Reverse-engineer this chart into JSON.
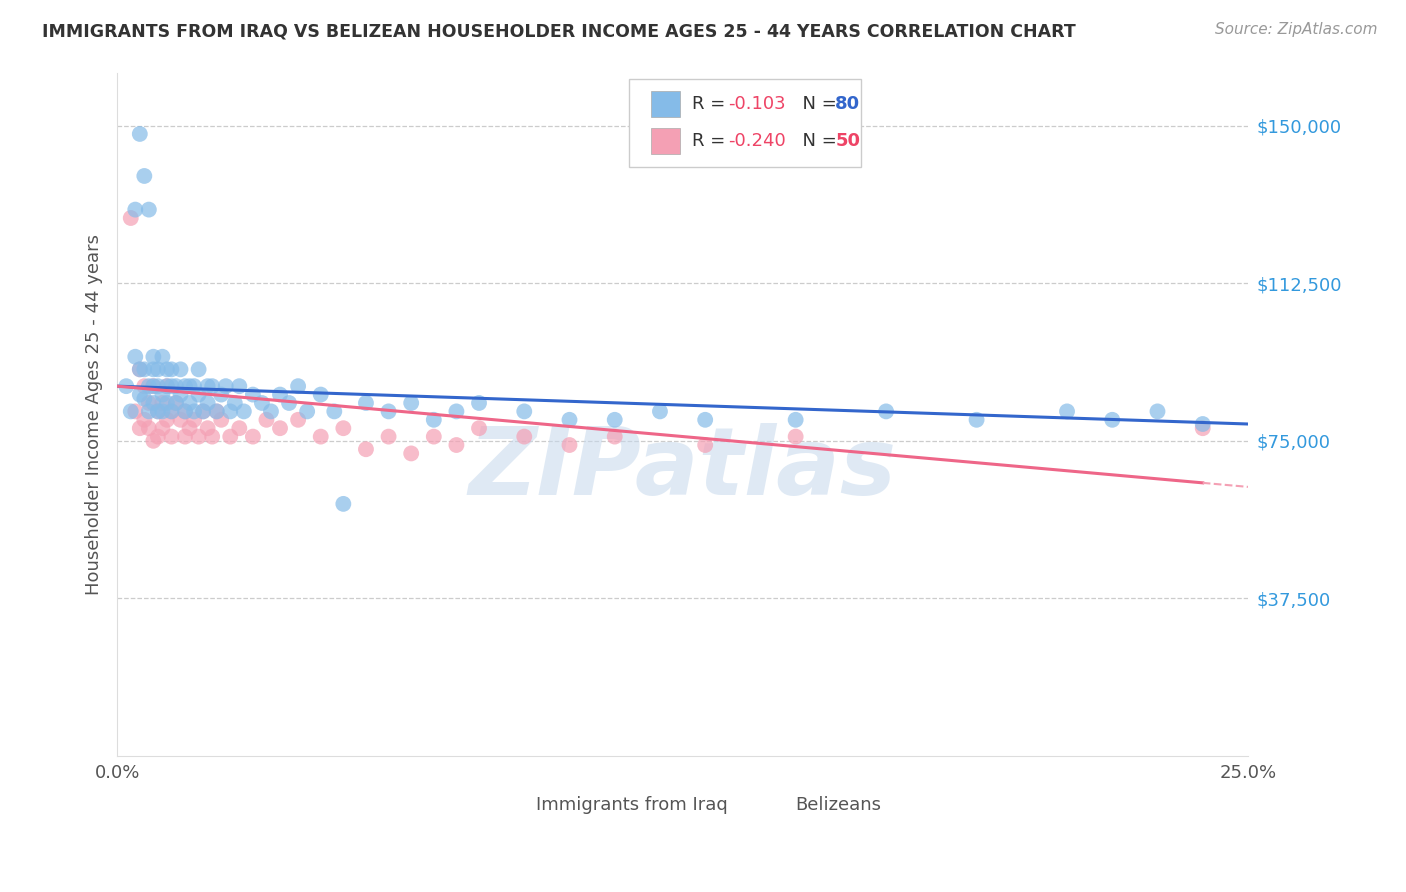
{
  "title": "IMMIGRANTS FROM IRAQ VS BELIZEAN HOUSEHOLDER INCOME AGES 25 - 44 YEARS CORRELATION CHART",
  "source": "Source: ZipAtlas.com",
  "ylabel": "Householder Income Ages 25 - 44 years",
  "xlim": [
    0.0,
    0.25
  ],
  "ylim": [
    0,
    162500
  ],
  "yticks": [
    37500,
    75000,
    112500,
    150000
  ],
  "ytick_labels": [
    "$37,500",
    "$75,000",
    "$112,500",
    "$150,000"
  ],
  "xticks": [
    0.0,
    0.05,
    0.1,
    0.15,
    0.2,
    0.25
  ],
  "xtick_labels": [
    "0.0%",
    "",
    "",
    "",
    "",
    "25.0%"
  ],
  "iraq_color": "#85BBE8",
  "belize_color": "#F4A0B4",
  "iraq_line_color": "#3366CC",
  "belize_line_solid_color": "#EE6688",
  "belize_line_dash_color": "#F4A0B4",
  "background_color": "#FFFFFF",
  "watermark": "ZIPatlas",
  "iraq_r": "-0.103",
  "iraq_n": "80",
  "belize_r": "-0.240",
  "belize_n": "50",
  "r_color": "#EE4466",
  "n_color_iraq": "#3366CC",
  "n_color_belize": "#EE4466",
  "iraq_x": [
    0.002,
    0.003,
    0.004,
    0.004,
    0.005,
    0.005,
    0.005,
    0.006,
    0.006,
    0.006,
    0.007,
    0.007,
    0.007,
    0.008,
    0.008,
    0.008,
    0.008,
    0.009,
    0.009,
    0.009,
    0.01,
    0.01,
    0.01,
    0.011,
    0.011,
    0.011,
    0.012,
    0.012,
    0.012,
    0.013,
    0.013,
    0.014,
    0.014,
    0.015,
    0.015,
    0.016,
    0.016,
    0.017,
    0.017,
    0.018,
    0.018,
    0.019,
    0.02,
    0.02,
    0.021,
    0.022,
    0.023,
    0.024,
    0.025,
    0.026,
    0.027,
    0.028,
    0.03,
    0.032,
    0.034,
    0.036,
    0.038,
    0.04,
    0.042,
    0.045,
    0.048,
    0.05,
    0.055,
    0.06,
    0.065,
    0.07,
    0.075,
    0.08,
    0.09,
    0.1,
    0.11,
    0.12,
    0.13,
    0.15,
    0.17,
    0.19,
    0.21,
    0.22,
    0.23,
    0.24
  ],
  "iraq_y": [
    88000,
    82000,
    95000,
    130000,
    148000,
    92000,
    86000,
    138000,
    92000,
    85000,
    88000,
    130000,
    82000,
    95000,
    88000,
    84000,
    92000,
    88000,
    82000,
    92000,
    95000,
    86000,
    82000,
    92000,
    88000,
    84000,
    82000,
    88000,
    92000,
    88000,
    84000,
    86000,
    92000,
    88000,
    82000,
    88000,
    84000,
    82000,
    88000,
    92000,
    86000,
    82000,
    88000,
    84000,
    88000,
    82000,
    86000,
    88000,
    82000,
    84000,
    88000,
    82000,
    86000,
    84000,
    82000,
    86000,
    84000,
    88000,
    82000,
    86000,
    82000,
    60000,
    84000,
    82000,
    84000,
    80000,
    82000,
    84000,
    82000,
    80000,
    80000,
    82000,
    80000,
    80000,
    82000,
    80000,
    82000,
    80000,
    82000,
    79000
  ],
  "belize_x": [
    0.003,
    0.004,
    0.005,
    0.005,
    0.006,
    0.006,
    0.007,
    0.007,
    0.008,
    0.008,
    0.009,
    0.009,
    0.01,
    0.01,
    0.011,
    0.011,
    0.012,
    0.012,
    0.013,
    0.014,
    0.015,
    0.015,
    0.016,
    0.017,
    0.018,
    0.019,
    0.02,
    0.021,
    0.022,
    0.023,
    0.025,
    0.027,
    0.03,
    0.033,
    0.036,
    0.04,
    0.045,
    0.05,
    0.055,
    0.06,
    0.065,
    0.07,
    0.075,
    0.08,
    0.09,
    0.1,
    0.11,
    0.13,
    0.15,
    0.24
  ],
  "belize_y": [
    128000,
    82000,
    78000,
    92000,
    88000,
    80000,
    84000,
    78000,
    88000,
    75000,
    82000,
    76000,
    84000,
    78000,
    80000,
    88000,
    82000,
    76000,
    84000,
    80000,
    76000,
    82000,
    78000,
    80000,
    76000,
    82000,
    78000,
    76000,
    82000,
    80000,
    76000,
    78000,
    76000,
    80000,
    78000,
    80000,
    76000,
    78000,
    73000,
    76000,
    72000,
    76000,
    74000,
    78000,
    76000,
    74000,
    76000,
    74000,
    76000,
    78000
  ]
}
